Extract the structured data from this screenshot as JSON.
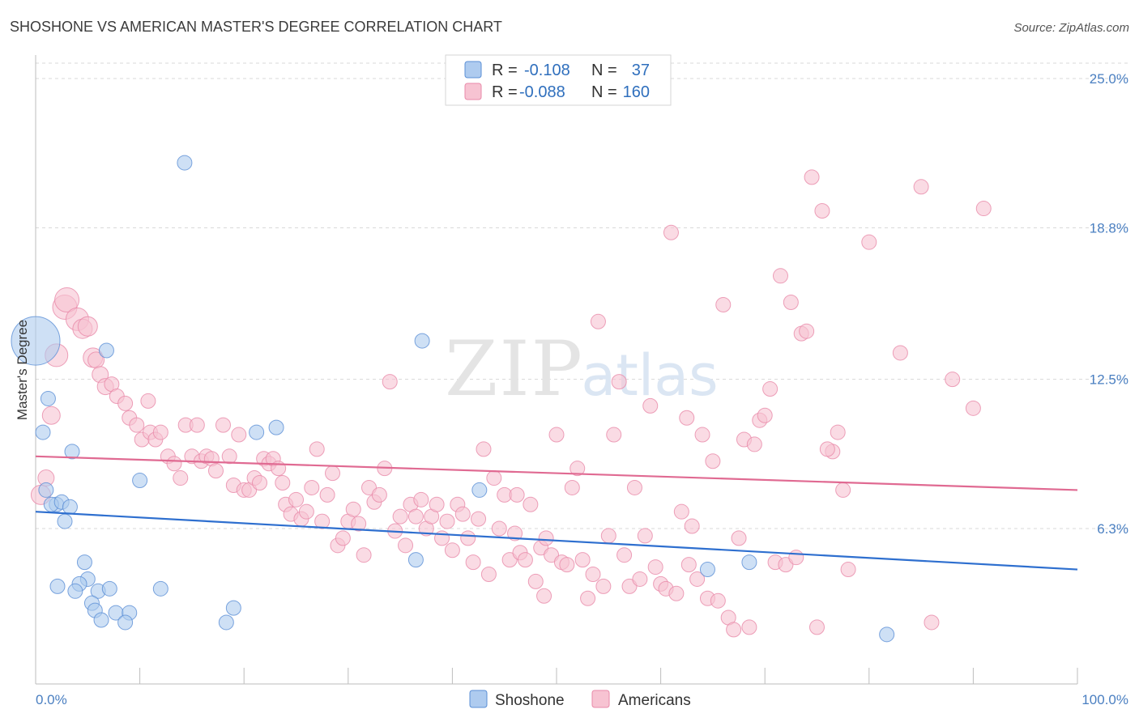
{
  "title": "SHOSHONE VS AMERICAN MASTER'S DEGREE CORRELATION CHART",
  "source": "Source: ZipAtlas.com",
  "watermark": {
    "zip": "ZIP",
    "atlas": "atlas"
  },
  "colors": {
    "shoshone_fill": "#aecbef",
    "shoshone_stroke": "#5b8fd6",
    "shoshone_line": "#2e6fcf",
    "americans_fill": "#f7c3d2",
    "americans_stroke": "#e98aa9",
    "americans_line": "#e06a92",
    "grid": "#d8d8d8",
    "tick_label": "#4a7fc1"
  },
  "legend": {
    "rows": [
      {
        "r_label": "R = ",
        "r_value": "-0.108",
        "n_label": "N = ",
        "n_value": "37"
      },
      {
        "r_label": "R = ",
        "r_value": "-0.088",
        "n_label": "N = ",
        "n_value": "160"
      }
    ]
  },
  "chart_data": {
    "type": "scatter",
    "title": "SHOSHONE VS AMERICAN MASTER'S DEGREE CORRELATION CHART",
    "xlabel": "",
    "ylabel": "Master's Degree",
    "xlim": [
      0,
      100
    ],
    "ylim": [
      0,
      25
    ],
    "y_ticks": [
      6.3,
      12.5,
      18.8,
      25.0
    ],
    "y_tick_labels": [
      "6.3%",
      "12.5%",
      "18.8%",
      "25.0%"
    ],
    "x_tick_labels": [
      "0.0%",
      "100.0%"
    ],
    "grid": true,
    "legend_position": "top-center",
    "series": [
      {
        "name": "Shoshone",
        "r": -0.108,
        "n": 37,
        "trend": [
          [
            0,
            7.0
          ],
          [
            100,
            4.6
          ]
        ],
        "points": [
          [
            0,
            14.1,
            30
          ],
          [
            14.3,
            21.5,
            9
          ],
          [
            1.2,
            11.7,
            9
          ],
          [
            0.7,
            10.3,
            9
          ],
          [
            6.8,
            13.7,
            9
          ],
          [
            3.5,
            9.5,
            9
          ],
          [
            10.0,
            8.3,
            9
          ],
          [
            1.0,
            7.9,
            9
          ],
          [
            2.0,
            7.3,
            9
          ],
          [
            1.5,
            7.3,
            9
          ],
          [
            2.5,
            7.4,
            9
          ],
          [
            3.3,
            7.2,
            9
          ],
          [
            2.8,
            6.6,
            9
          ],
          [
            4.7,
            4.9,
            9
          ],
          [
            5.0,
            4.2,
            9
          ],
          [
            4.2,
            4.0,
            9
          ],
          [
            2.1,
            3.9,
            9
          ],
          [
            3.8,
            3.7,
            9
          ],
          [
            6.0,
            3.7,
            9
          ],
          [
            7.1,
            3.8,
            9
          ],
          [
            12.0,
            3.8,
            9
          ],
          [
            5.4,
            3.2,
            9
          ],
          [
            5.7,
            2.9,
            9
          ],
          [
            7.7,
            2.8,
            9
          ],
          [
            9.0,
            2.8,
            9
          ],
          [
            6.3,
            2.5,
            9
          ],
          [
            8.6,
            2.4,
            9
          ],
          [
            19.0,
            3.0,
            9
          ],
          [
            18.3,
            2.4,
            9
          ],
          [
            21.2,
            10.3,
            9
          ],
          [
            23.1,
            10.5,
            9
          ],
          [
            36.5,
            5.0,
            9
          ],
          [
            37.1,
            14.1,
            9
          ],
          [
            42.6,
            7.9,
            9
          ],
          [
            64.5,
            4.6,
            9
          ],
          [
            68.5,
            4.9,
            9
          ],
          [
            81.7,
            1.9,
            9
          ]
        ]
      },
      {
        "name": "Americans",
        "r": -0.088,
        "n": 160,
        "trend": [
          [
            0,
            9.3
          ],
          [
            100,
            7.9
          ]
        ],
        "points": [
          [
            0.5,
            7.7,
            12
          ],
          [
            1.0,
            8.4,
            10
          ],
          [
            1.5,
            11.0,
            11
          ],
          [
            2.0,
            13.5,
            14
          ],
          [
            2.8,
            15.5,
            15
          ],
          [
            3.0,
            15.8,
            15
          ],
          [
            4.0,
            15.0,
            14
          ],
          [
            4.5,
            14.6,
            12
          ],
          [
            5.0,
            14.7,
            12
          ],
          [
            5.5,
            13.4,
            12
          ],
          [
            5.8,
            13.3,
            10
          ],
          [
            6.2,
            12.7,
            10
          ],
          [
            6.7,
            12.2,
            10
          ],
          [
            7.3,
            12.3,
            9
          ],
          [
            7.8,
            11.8,
            9
          ],
          [
            8.6,
            11.5,
            9
          ],
          [
            9.0,
            10.9,
            9
          ],
          [
            9.7,
            10.6,
            9
          ],
          [
            10.2,
            10.0,
            9
          ],
          [
            11.0,
            10.3,
            9
          ],
          [
            11.5,
            10.0,
            9
          ],
          [
            12.0,
            10.3,
            9
          ],
          [
            10.8,
            11.6,
            9
          ],
          [
            12.7,
            9.3,
            9
          ],
          [
            13.3,
            9.0,
            9
          ],
          [
            13.9,
            8.4,
            9
          ],
          [
            14.4,
            10.6,
            9
          ],
          [
            15.0,
            9.3,
            9
          ],
          [
            15.5,
            10.6,
            9
          ],
          [
            15.9,
            9.1,
            9
          ],
          [
            16.4,
            9.3,
            9
          ],
          [
            16.9,
            9.2,
            9
          ],
          [
            17.3,
            8.7,
            9
          ],
          [
            18.0,
            10.6,
            9
          ],
          [
            18.6,
            9.3,
            9
          ],
          [
            19.0,
            8.1,
            9
          ],
          [
            19.5,
            10.2,
            9
          ],
          [
            20.0,
            7.9,
            9
          ],
          [
            20.5,
            7.9,
            9
          ],
          [
            21.0,
            8.4,
            9
          ],
          [
            21.5,
            8.2,
            9
          ],
          [
            21.9,
            9.2,
            9
          ],
          [
            22.4,
            9.0,
            9
          ],
          [
            22.8,
            9.2,
            9
          ],
          [
            23.3,
            8.8,
            9
          ],
          [
            23.7,
            8.2,
            9
          ],
          [
            24.0,
            7.3,
            9
          ],
          [
            24.5,
            6.9,
            9
          ],
          [
            25.0,
            7.5,
            9
          ],
          [
            25.5,
            6.7,
            9
          ],
          [
            26.0,
            7.0,
            9
          ],
          [
            26.5,
            8.0,
            9
          ],
          [
            27.0,
            9.6,
            9
          ],
          [
            27.5,
            6.6,
            9
          ],
          [
            28.0,
            7.7,
            9
          ],
          [
            28.5,
            8.6,
            9
          ],
          [
            29.0,
            5.6,
            9
          ],
          [
            29.5,
            5.9,
            9
          ],
          [
            30.0,
            6.6,
            9
          ],
          [
            30.5,
            7.1,
            9
          ],
          [
            31.0,
            6.5,
            9
          ],
          [
            31.5,
            5.2,
            9
          ],
          [
            32.0,
            8.0,
            9
          ],
          [
            32.5,
            7.4,
            9
          ],
          [
            33.0,
            7.7,
            9
          ],
          [
            33.5,
            8.8,
            9
          ],
          [
            34.0,
            12.4,
            9
          ],
          [
            34.5,
            6.2,
            9
          ],
          [
            35.0,
            6.8,
            9
          ],
          [
            35.5,
            5.6,
            9
          ],
          [
            36.0,
            7.3,
            9
          ],
          [
            36.5,
            6.8,
            9
          ],
          [
            37.0,
            7.5,
            9
          ],
          [
            37.5,
            6.3,
            9
          ],
          [
            38.0,
            6.8,
            9
          ],
          [
            38.5,
            7.3,
            9
          ],
          [
            39.0,
            5.9,
            9
          ],
          [
            39.5,
            6.6,
            9
          ],
          [
            40.0,
            5.4,
            9
          ],
          [
            40.5,
            7.3,
            9
          ],
          [
            41.0,
            6.9,
            9
          ],
          [
            41.5,
            5.9,
            9
          ],
          [
            42.0,
            4.9,
            9
          ],
          [
            42.5,
            6.7,
            9
          ],
          [
            43.0,
            9.6,
            9
          ],
          [
            43.5,
            4.4,
            9
          ],
          [
            44.0,
            8.4,
            9
          ],
          [
            44.5,
            6.3,
            9
          ],
          [
            45.0,
            7.7,
            9
          ],
          [
            45.5,
            5.0,
            9
          ],
          [
            46.0,
            6.1,
            9
          ],
          [
            46.5,
            5.3,
            9
          ],
          [
            47.0,
            5.0,
            9
          ],
          [
            47.5,
            7.3,
            9
          ],
          [
            48.0,
            4.1,
            9
          ],
          [
            48.5,
            5.5,
            9
          ],
          [
            49.0,
            5.9,
            9
          ],
          [
            49.5,
            5.2,
            9
          ],
          [
            50.0,
            10.2,
            9
          ],
          [
            50.5,
            4.9,
            9
          ],
          [
            51.0,
            4.8,
            9
          ],
          [
            51.5,
            8.0,
            9
          ],
          [
            52.0,
            8.8,
            9
          ],
          [
            52.5,
            5.0,
            9
          ],
          [
            53.0,
            3.4,
            9
          ],
          [
            53.5,
            4.4,
            9
          ],
          [
            54.0,
            14.9,
            9
          ],
          [
            54.5,
            3.9,
            9
          ],
          [
            55.0,
            6.0,
            9
          ],
          [
            55.5,
            10.2,
            9
          ],
          [
            56.0,
            12.4,
            9
          ],
          [
            56.5,
            5.2,
            9
          ],
          [
            57.0,
            3.9,
            9
          ],
          [
            57.5,
            8.0,
            9
          ],
          [
            58.0,
            4.2,
            9
          ],
          [
            58.5,
            6.0,
            9
          ],
          [
            59.0,
            11.4,
            9
          ],
          [
            59.5,
            4.7,
            9
          ],
          [
            60.0,
            4.0,
            9
          ],
          [
            60.5,
            3.8,
            9
          ],
          [
            61.0,
            18.6,
            9
          ],
          [
            61.5,
            3.6,
            9
          ],
          [
            62.0,
            7.0,
            9
          ],
          [
            62.5,
            10.9,
            9
          ],
          [
            63.0,
            6.4,
            9
          ],
          [
            63.5,
            4.2,
            9
          ],
          [
            64.0,
            10.2,
            9
          ],
          [
            64.5,
            3.4,
            9
          ],
          [
            65.0,
            9.1,
            9
          ],
          [
            65.5,
            3.3,
            9
          ],
          [
            66.0,
            15.6,
            9
          ],
          [
            66.5,
            2.6,
            9
          ],
          [
            67.0,
            2.1,
            9
          ],
          [
            67.5,
            5.9,
            9
          ],
          [
            68.0,
            10.0,
            9
          ],
          [
            68.5,
            2.2,
            9
          ],
          [
            69.0,
            9.8,
            9
          ],
          [
            69.5,
            10.8,
            9
          ],
          [
            70.0,
            11.0,
            9
          ],
          [
            70.5,
            12.1,
            9
          ],
          [
            71.0,
            4.9,
            9
          ],
          [
            71.5,
            16.8,
            9
          ],
          [
            72.0,
            4.8,
            9
          ],
          [
            72.5,
            15.7,
            9
          ],
          [
            73.0,
            5.1,
            9
          ],
          [
            73.5,
            14.4,
            9
          ],
          [
            74.0,
            14.5,
            9
          ],
          [
            74.5,
            20.9,
            9
          ],
          [
            75.0,
            2.2,
            9
          ],
          [
            75.5,
            19.5,
            9
          ],
          [
            76.5,
            9.5,
            9
          ],
          [
            77.0,
            10.3,
            9
          ],
          [
            77.5,
            7.9,
            9
          ],
          [
            78.0,
            4.6,
            9
          ],
          [
            80.0,
            18.2,
            9
          ],
          [
            83.0,
            13.6,
            9
          ],
          [
            85.0,
            20.5,
            9
          ],
          [
            86.0,
            2.4,
            9
          ],
          [
            88.0,
            12.5,
            9
          ],
          [
            90.0,
            11.3,
            9
          ],
          [
            91.0,
            19.6,
            9
          ],
          [
            76.0,
            9.6,
            9
          ],
          [
            62.7,
            4.8,
            9
          ],
          [
            48.8,
            3.5,
            9
          ],
          [
            46.2,
            7.7,
            9
          ]
        ]
      }
    ]
  },
  "bottom_legend": [
    "Shoshone",
    "Americans"
  ],
  "y_axis_title": "Master's Degree"
}
